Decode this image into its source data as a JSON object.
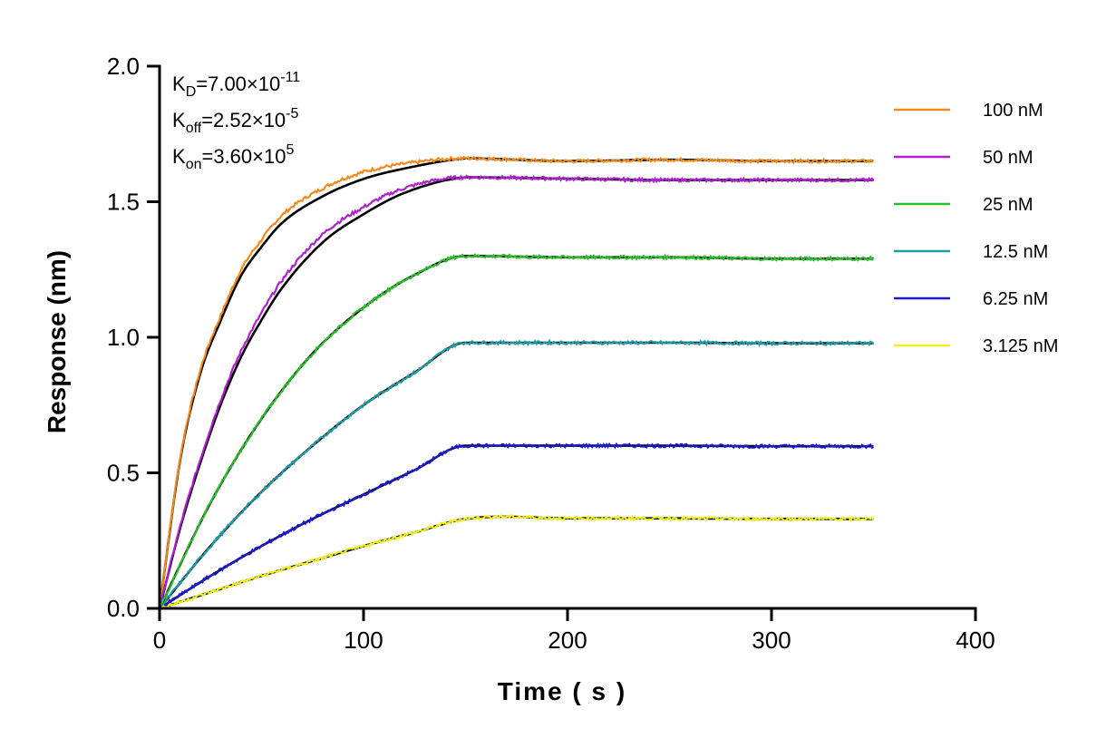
{
  "chart_data": {
    "type": "line",
    "title": "",
    "xlabel": "Time ( s )",
    "ylabel": "Response (nm)",
    "xlim": [
      0,
      400
    ],
    "ylim": [
      0.0,
      2.0
    ],
    "x_ticks": [
      0,
      100,
      200,
      300,
      400
    ],
    "x_tick_labels": [
      "0",
      "100",
      "200",
      "300",
      "400"
    ],
    "y_ticks": [
      0.0,
      0.5,
      1.0,
      1.5,
      2.0
    ],
    "y_tick_labels": [
      "0.0",
      "0.5",
      "1.0",
      "1.5",
      "2.0"
    ],
    "grid": false,
    "legend_position": "right",
    "association_end": 150,
    "dissociation_end": 350,
    "annotations": [
      {
        "main": "K",
        "sub": "D",
        "rest": "=7.00×10",
        "sup": "-11"
      },
      {
        "main": "K",
        "sub": "off",
        "rest": "=2.52×10",
        "sup": "-5"
      },
      {
        "main": "K",
        "sub": "on",
        "rest": "=3.60×10",
        "sup": "5"
      }
    ],
    "fit_color": "#000000",
    "series": [
      {
        "name": "100 nM",
        "color": "#F28A1E",
        "x": [
          0,
          10,
          20,
          30,
          40,
          50,
          60,
          80,
          100,
          120,
          150,
          200,
          250,
          300,
          350
        ],
        "values": [
          0,
          0.55,
          0.88,
          1.08,
          1.25,
          1.36,
          1.45,
          1.55,
          1.61,
          1.64,
          1.66,
          1.65,
          1.655,
          1.65,
          1.65
        ]
      },
      {
        "name": "50 nM",
        "color": "#B01FD0",
        "x": [
          0,
          10,
          20,
          30,
          40,
          50,
          60,
          80,
          100,
          120,
          150,
          200,
          250,
          300,
          350
        ],
        "values": [
          0,
          0.3,
          0.55,
          0.77,
          0.95,
          1.09,
          1.21,
          1.38,
          1.48,
          1.55,
          1.59,
          1.585,
          1.58,
          1.58,
          1.58
        ]
      },
      {
        "name": "25 nM",
        "color": "#2ABF2A",
        "x": [
          0,
          25,
          50,
          75,
          100,
          125,
          150,
          200,
          250,
          300,
          350
        ],
        "values": [
          0,
          0.39,
          0.7,
          0.94,
          1.11,
          1.23,
          1.3,
          1.295,
          1.295,
          1.29,
          1.29
        ]
      },
      {
        "name": "12.5 nM",
        "color": "#1F9BA6",
        "x": [
          0,
          25,
          50,
          75,
          100,
          125,
          150,
          200,
          250,
          300,
          350
        ],
        "values": [
          0,
          0.23,
          0.43,
          0.6,
          0.75,
          0.87,
          0.98,
          0.98,
          0.98,
          0.978,
          0.978
        ]
      },
      {
        "name": "6.25 nM",
        "color": "#1A1ACC",
        "x": [
          0,
          25,
          50,
          75,
          100,
          125,
          150,
          200,
          250,
          300,
          350
        ],
        "values": [
          0,
          0.12,
          0.23,
          0.33,
          0.42,
          0.51,
          0.6,
          0.6,
          0.6,
          0.598,
          0.598
        ]
      },
      {
        "name": "3.125 nM",
        "color": "#F0F020",
        "x": [
          0,
          25,
          50,
          75,
          100,
          125,
          150,
          200,
          250,
          300,
          350
        ],
        "values": [
          0,
          0.06,
          0.12,
          0.175,
          0.23,
          0.28,
          0.33,
          0.332,
          0.332,
          0.33,
          0.33
        ]
      }
    ]
  }
}
